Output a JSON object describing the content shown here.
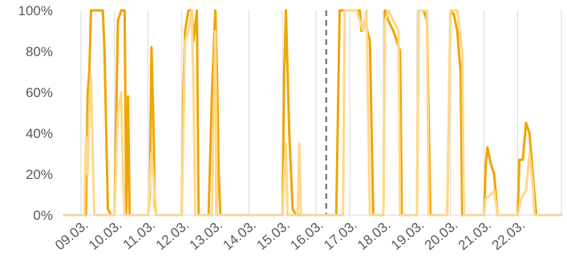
{
  "chart_data": {
    "type": "line",
    "title": "",
    "xlabel": "",
    "ylabel": "",
    "ylim": [
      0,
      100
    ],
    "yticks": [
      "0%",
      "20%",
      "40%",
      "60%",
      "80%",
      "100%"
    ],
    "ytick_values": [
      0,
      20,
      40,
      60,
      80,
      100
    ],
    "x_unit": "days from 09.03.",
    "xlim": [
      -0.5,
      14.3
    ],
    "xticks": [
      "09.03.",
      "10.03.",
      "11.03.",
      "12.03.",
      "13.03.",
      "14.03.",
      "15.03.",
      "16.03.",
      "17.03.",
      "18.03.",
      "19.03.",
      "20.03.",
      "21.03.",
      "22.03."
    ],
    "grid": "vertical",
    "reference_line": {
      "x": 7.3,
      "style": "dashed",
      "color": "#808080"
    },
    "series": [
      {
        "color": "#F0A500",
        "points": [
          [
            -0.5,
            0
          ],
          [
            0.15,
            0
          ],
          [
            0.2,
            60
          ],
          [
            0.25,
            70
          ],
          [
            0.3,
            100
          ],
          [
            0.65,
            100
          ],
          [
            0.7,
            80
          ],
          [
            0.8,
            3
          ],
          [
            0.9,
            0
          ],
          [
            1.0,
            0
          ],
          [
            1.1,
            95
          ],
          [
            1.2,
            100
          ],
          [
            1.3,
            100
          ],
          [
            1.35,
            0
          ],
          [
            1.4,
            58
          ],
          [
            1.45,
            0
          ],
          [
            1.6,
            0
          ],
          [
            2.0,
            0
          ],
          [
            2.05,
            10
          ],
          [
            2.1,
            82
          ],
          [
            2.15,
            50
          ],
          [
            2.2,
            5
          ],
          [
            2.25,
            0
          ],
          [
            3.0,
            0
          ],
          [
            3.05,
            60
          ],
          [
            3.1,
            90
          ],
          [
            3.2,
            100
          ],
          [
            3.3,
            100
          ],
          [
            3.35,
            85
          ],
          [
            3.45,
            100
          ],
          [
            3.5,
            0
          ],
          [
            3.8,
            0
          ],
          [
            3.9,
            60
          ],
          [
            4.0,
            100
          ],
          [
            4.05,
            70
          ],
          [
            4.1,
            20
          ],
          [
            4.15,
            0
          ],
          [
            6.0,
            0
          ],
          [
            6.05,
            70
          ],
          [
            6.1,
            100
          ],
          [
            6.2,
            40
          ],
          [
            6.3,
            3
          ],
          [
            6.4,
            0
          ],
          [
            7.6,
            0
          ],
          [
            7.7,
            100
          ],
          [
            8.3,
            100
          ],
          [
            8.35,
            90
          ],
          [
            8.45,
            95
          ],
          [
            8.6,
            85
          ],
          [
            8.7,
            0
          ],
          [
            9.0,
            0
          ],
          [
            9.05,
            100
          ],
          [
            9.15,
            95
          ],
          [
            9.3,
            90
          ],
          [
            9.5,
            80
          ],
          [
            9.55,
            0
          ],
          [
            10.0,
            0
          ],
          [
            10.05,
            100
          ],
          [
            10.2,
            100
          ],
          [
            10.3,
            95
          ],
          [
            10.4,
            0
          ],
          [
            10.9,
            0
          ],
          [
            11.0,
            100
          ],
          [
            11.1,
            98
          ],
          [
            11.2,
            90
          ],
          [
            11.3,
            70
          ],
          [
            11.35,
            0
          ],
          [
            12.0,
            0
          ],
          [
            12.05,
            25
          ],
          [
            12.1,
            33
          ],
          [
            12.2,
            25
          ],
          [
            12.3,
            20
          ],
          [
            12.4,
            0
          ],
          [
            13.0,
            0
          ],
          [
            13.05,
            27
          ],
          [
            13.15,
            27
          ],
          [
            13.25,
            45
          ],
          [
            13.35,
            40
          ],
          [
            13.45,
            20
          ],
          [
            13.55,
            0
          ],
          [
            14.3,
            0
          ]
        ]
      },
      {
        "color": "#FFD98A",
        "points": [
          [
            -0.5,
            0
          ],
          [
            0.1,
            0
          ],
          [
            0.15,
            38
          ],
          [
            0.2,
            20
          ],
          [
            0.25,
            52
          ],
          [
            0.3,
            68
          ],
          [
            0.35,
            30
          ],
          [
            0.4,
            0
          ],
          [
            1.0,
            0
          ],
          [
            1.1,
            50
          ],
          [
            1.2,
            60
          ],
          [
            1.25,
            20
          ],
          [
            1.3,
            0
          ],
          [
            2.0,
            0
          ],
          [
            2.1,
            30
          ],
          [
            2.2,
            10
          ],
          [
            2.25,
            0
          ],
          [
            3.0,
            0
          ],
          [
            3.1,
            85
          ],
          [
            3.2,
            90
          ],
          [
            3.3,
            100
          ],
          [
            3.35,
            60
          ],
          [
            3.4,
            0
          ],
          [
            3.9,
            0
          ],
          [
            4.0,
            90
          ],
          [
            4.05,
            0
          ],
          [
            6.0,
            0
          ],
          [
            6.05,
            20
          ],
          [
            6.1,
            35
          ],
          [
            6.15,
            0
          ],
          [
            6.45,
            0
          ],
          [
            6.5,
            35
          ],
          [
            6.55,
            0
          ],
          [
            7.8,
            0
          ],
          [
            7.85,
            100
          ],
          [
            8.2,
            100
          ],
          [
            8.3,
            95
          ],
          [
            8.4,
            90
          ],
          [
            8.5,
            100
          ],
          [
            8.6,
            0
          ],
          [
            9.0,
            0
          ],
          [
            9.05,
            95
          ],
          [
            9.15,
            100
          ],
          [
            9.3,
            95
          ],
          [
            9.45,
            90
          ],
          [
            9.5,
            0
          ],
          [
            10.0,
            0
          ],
          [
            10.05,
            100
          ],
          [
            10.3,
            100
          ],
          [
            10.35,
            0
          ],
          [
            10.9,
            0
          ],
          [
            11.0,
            100
          ],
          [
            11.2,
            100
          ],
          [
            11.35,
            80
          ],
          [
            11.4,
            0
          ],
          [
            12.0,
            0
          ],
          [
            12.05,
            8
          ],
          [
            12.2,
            10
          ],
          [
            12.3,
            12
          ],
          [
            12.4,
            0
          ],
          [
            13.0,
            0
          ],
          [
            13.1,
            8
          ],
          [
            13.25,
            12
          ],
          [
            13.35,
            30
          ],
          [
            13.45,
            15
          ],
          [
            13.5,
            0
          ],
          [
            14.3,
            0
          ]
        ]
      }
    ]
  }
}
